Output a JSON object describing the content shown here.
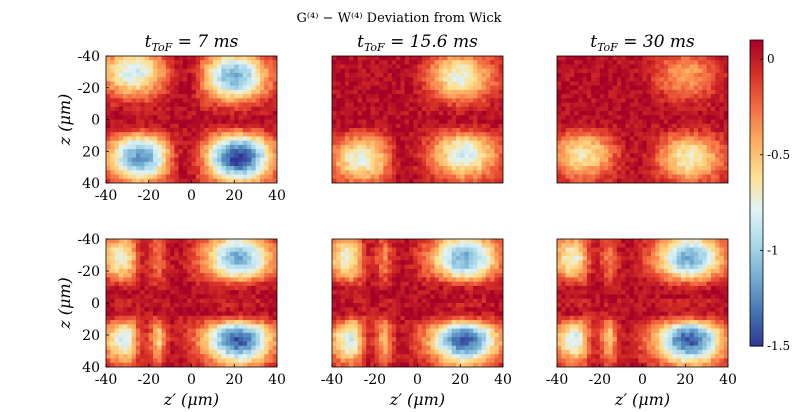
{
  "figure": {
    "suptitle": "G⁽⁴⁾ − W⁽⁴⁾ Deviation from Wick",
    "colorscale": [
      "#313695",
      "#4575b4",
      "#74add1",
      "#abd9e9",
      "#e0f3f8",
      "#fee090",
      "#fdae61",
      "#f46d43",
      "#d73027",
      "#a50026"
    ]
  },
  "chart_data": [
    {
      "type": "heatmap",
      "panel": "row1-col1",
      "title": "t_ToF = 7 ms",
      "xlabel": "",
      "ylabel": "z (μm)",
      "x_range": [
        -40,
        40
      ],
      "y_range": [
        -40,
        40
      ],
      "clim": [
        -1.5,
        0.1
      ],
      "blobs": [
        {
          "x": -27,
          "y": -30,
          "value": -0.9
        },
        {
          "x": 20,
          "y": -27,
          "value": -1.2
        },
        {
          "x": -24,
          "y": 24,
          "value": -1.25
        },
        {
          "x": 22,
          "y": 24,
          "value": -1.55
        }
      ],
      "ridge_x": [
        -3
      ],
      "ridge_y": [
        0
      ],
      "x_ticks": [
        -40,
        -20,
        0,
        20,
        40
      ],
      "y_ticks": [
        -40,
        -20,
        0,
        20,
        40
      ]
    },
    {
      "type": "heatmap",
      "panel": "row1-col2",
      "title": "t_ToF = 15.6 ms",
      "x_range": [
        -40,
        40
      ],
      "y_range": [
        -40,
        40
      ],
      "clim": [
        -1.5,
        0.1
      ],
      "blobs": [
        {
          "x": 20,
          "y": -27,
          "value": -0.8
        },
        {
          "x": 22,
          "y": 22,
          "value": -0.9
        },
        {
          "x": -26,
          "y": 25,
          "value": -0.8
        }
      ],
      "ridge_x": [
        -6
      ],
      "ridge_y": [
        0
      ]
    },
    {
      "type": "heatmap",
      "panel": "row1-col3",
      "title": "t_ToF = 30 ms",
      "x_range": [
        -40,
        40
      ],
      "y_range": [
        -40,
        40
      ],
      "clim": [
        -1.5,
        0.1
      ],
      "blobs": [
        {
          "x": 22,
          "y": 24,
          "value": -0.75
        },
        {
          "x": -28,
          "y": 22,
          "value": -0.7
        },
        {
          "x": 20,
          "y": -28,
          "value": -0.45
        }
      ],
      "ridge_x": [
        -3
      ],
      "ridge_y": [
        0
      ]
    },
    {
      "type": "heatmap",
      "panel": "row2-col1",
      "xlabel": "z′ (μm)",
      "ylabel": "z (μm)",
      "x_range": [
        -40,
        40
      ],
      "y_range": [
        -40,
        40
      ],
      "clim": [
        -1.5,
        0.1
      ],
      "blobs": [
        {
          "x": -27,
          "y": -28,
          "value": -1.0
        },
        {
          "x": 22,
          "y": -28,
          "value": -1.2
        },
        {
          "x": -24,
          "y": 23,
          "value": -1.3
        },
        {
          "x": 22,
          "y": 23,
          "value": -1.45
        }
      ],
      "ridge_x": [
        -22,
        -8
      ],
      "ridge_y": [
        -6,
        5
      ],
      "x_ticks": [
        -40,
        -20,
        0,
        20,
        40
      ],
      "y_ticks": [
        -40,
        -20,
        0,
        20,
        40
      ]
    },
    {
      "type": "heatmap",
      "panel": "row2-col2",
      "xlabel": "z′ (μm)",
      "x_range": [
        -40,
        40
      ],
      "y_range": [
        -40,
        40
      ],
      "clim": [
        -1.5,
        0.1
      ],
      "blobs": [
        {
          "x": -27,
          "y": -28,
          "value": -1.0
        },
        {
          "x": 22,
          "y": -28,
          "value": -1.2
        },
        {
          "x": -24,
          "y": 23,
          "value": -1.3
        },
        {
          "x": 22,
          "y": 23,
          "value": -1.45
        }
      ],
      "ridge_x": [
        -22,
        -8
      ],
      "ridge_y": [
        -6,
        5
      ],
      "x_ticks": [
        -40,
        -20,
        0,
        20,
        40
      ]
    },
    {
      "type": "heatmap",
      "panel": "row2-col3",
      "xlabel": "z′ (μm)",
      "x_range": [
        -40,
        40
      ],
      "y_range": [
        -40,
        40
      ],
      "clim": [
        -1.5,
        0.1
      ],
      "blobs": [
        {
          "x": -27,
          "y": -28,
          "value": -1.0
        },
        {
          "x": 22,
          "y": -28,
          "value": -1.2
        },
        {
          "x": -24,
          "y": 23,
          "value": -1.3
        },
        {
          "x": 22,
          "y": 23,
          "value": -1.45
        }
      ],
      "ridge_x": [
        -22,
        -8
      ],
      "ridge_y": [
        -6,
        5
      ],
      "x_ticks": [
        -40,
        -20,
        0,
        20,
        40
      ]
    }
  ],
  "colorbar": {
    "ticks": [
      0,
      -0.5,
      -1,
      -1.5
    ],
    "tick_labels": [
      "0",
      "-0.5",
      "-1",
      "-1.5"
    ],
    "range": [
      -1.5,
      0.1
    ]
  }
}
